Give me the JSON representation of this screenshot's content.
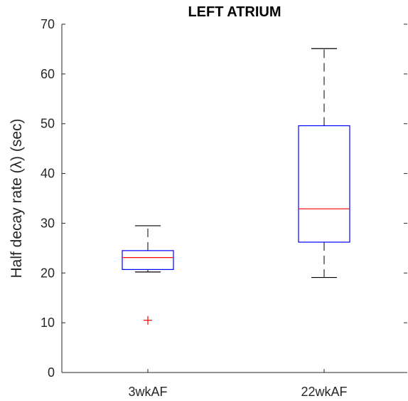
{
  "chart_data": {
    "type": "box",
    "title": "LEFT ATRIUM",
    "xlabel": "",
    "ylabel": "Half decay rate (λ) (sec)",
    "ylim": [
      0,
      70
    ],
    "yticks": [
      0,
      10,
      20,
      30,
      40,
      50,
      60,
      70
    ],
    "categories": [
      "3wkAF",
      "22wkAF"
    ],
    "boxes": [
      {
        "name": "3wkAF",
        "whisker_low": 20.2,
        "q1": 20.7,
        "median": 23.1,
        "q3": 24.5,
        "whisker_high": 29.5,
        "outliers": [
          10.5
        ]
      },
      {
        "name": "22wkAF",
        "whisker_low": 19.1,
        "q1": 26.2,
        "median": 32.9,
        "q3": 49.6,
        "whisker_high": 65.1,
        "outliers": []
      }
    ],
    "grid": false,
    "colors": {
      "box": "#0000ff",
      "median": "#ff0000",
      "whisker": "#000000",
      "outlier": "#ff0000",
      "axis": "#262626"
    }
  }
}
